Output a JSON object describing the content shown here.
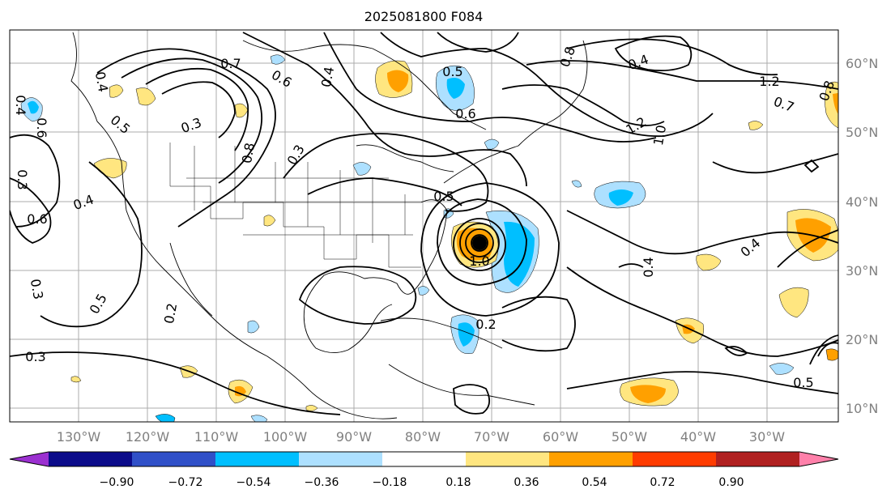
{
  "title": "2025081800 F084",
  "map": {
    "lon_ticks": [
      "130°W",
      "120°W",
      "110°W",
      "100°W",
      "90°W",
      "80°W",
      "70°W",
      "60°W",
      "50°W",
      "40°W",
      "30°W"
    ],
    "lat_ticks": [
      "60°N",
      "50°N",
      "40°N",
      "30°N",
      "20°N",
      "10°N"
    ],
    "contour_labels": [
      "0.7",
      "0.6",
      "0.4",
      "0.5",
      "0.6",
      "0.8",
      "0.4",
      "1.2",
      "0.7",
      "1.2",
      "1.0",
      "0.5",
      "0.3",
      "0.4",
      "0.6",
      "0.3",
      "0.6",
      "0.8",
      "0.4",
      "0.5",
      "0.2",
      "0.4",
      "0.3",
      "0.5",
      "0.3",
      "1.0",
      "0.4",
      "0.2",
      "0.4",
      "0.3",
      "0.5",
      "0.8"
    ],
    "storm_marker": "hurricane-center"
  },
  "colorbar": {
    "ticks": [
      "−0.90",
      "−0.72",
      "−0.54",
      "−0.36",
      "−0.18",
      "0.18",
      "0.36",
      "0.54",
      "0.72",
      "0.90"
    ],
    "colors": [
      "#9b30d0",
      "#0b0b8a",
      "#3050c8",
      "#00bfff",
      "#ade0ff",
      "#ffffff",
      "#ffe680",
      "#ffa000",
      "#ff3c00",
      "#b02020",
      "#ff80aa"
    ]
  }
}
